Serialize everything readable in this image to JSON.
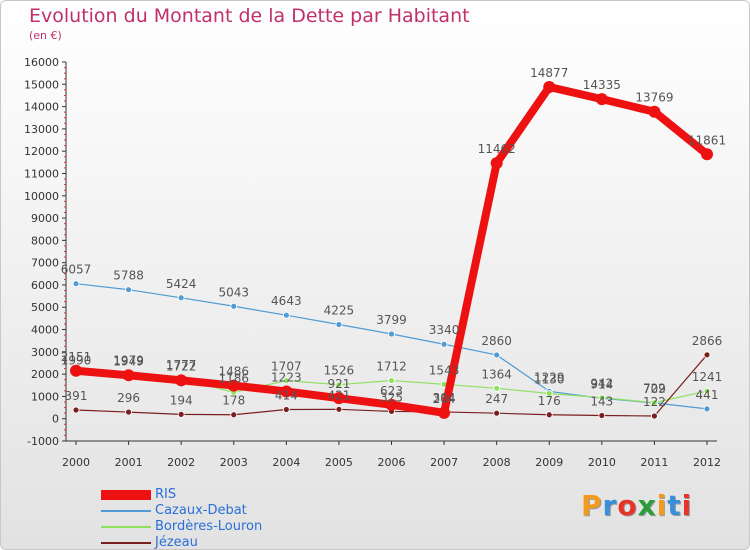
{
  "title": "Evolution du Montant de la Dette par Habitant",
  "unit": "(en €)",
  "logo": "Proxiti",
  "chart_data": {
    "type": "line",
    "x": [
      2000,
      2001,
      2002,
      2003,
      2004,
      2005,
      2006,
      2007,
      2008,
      2009,
      2010,
      2011,
      2012
    ],
    "ylim": [
      -1000,
      16000
    ],
    "yticks": [
      -1000,
      0,
      1000,
      2000,
      3000,
      4000,
      5000,
      6000,
      7000,
      8000,
      9000,
      10000,
      11000,
      12000,
      13000,
      14000,
      15000,
      16000
    ],
    "grid": false,
    "legend_position": "bottom-left",
    "series": [
      {
        "name": "RIS",
        "color": "#ee1111",
        "values": [
          2151,
          1949,
          1722,
          1486,
          1223,
          921,
          623,
          264,
          11462,
          14877,
          14335,
          13769,
          11861
        ],
        "labels": [
          "2151",
          "1949",
          "1722",
          "1486",
          "1223",
          "921",
          "623",
          "264",
          "11462",
          "14877",
          "14335",
          "13769",
          "11861"
        ]
      },
      {
        "name": "Cazaux-Debat",
        "color": "#4f9bd4",
        "values": [
          6057,
          5788,
          5424,
          5043,
          4643,
          4225,
          3799,
          3340,
          2860,
          1229,
          914,
          709,
          441
        ],
        "labels": [
          "6057",
          "5788",
          "5424",
          "5043",
          "4643",
          "4225",
          "3799",
          "3340",
          "2860",
          "1229",
          "914",
          "709",
          "441"
        ]
      },
      {
        "name": "Bordères-Louron",
        "color": "#90e060",
        "values": [
          1990,
          1979,
          1777,
          1186,
          1707,
          1526,
          1712,
          1543,
          1364,
          1130,
          942,
          722,
          1241
        ],
        "labels": [
          "1990",
          "1979",
          "1777",
          "1186",
          "1707",
          "1526",
          "1712",
          "1543",
          "1364",
          "1130",
          "942",
          "722",
          "1241"
        ]
      },
      {
        "name": "Jézeau",
        "color": "#7a1f1f",
        "values": [
          391,
          296,
          194,
          178,
          414,
          421,
          325,
          304,
          247,
          176,
          143,
          122,
          2866
        ],
        "labels": [
          "391",
          "296",
          "194",
          "178",
          "414",
          "421",
          "325",
          "304",
          "247",
          "176",
          "143",
          "122",
          "2866"
        ]
      }
    ]
  }
}
